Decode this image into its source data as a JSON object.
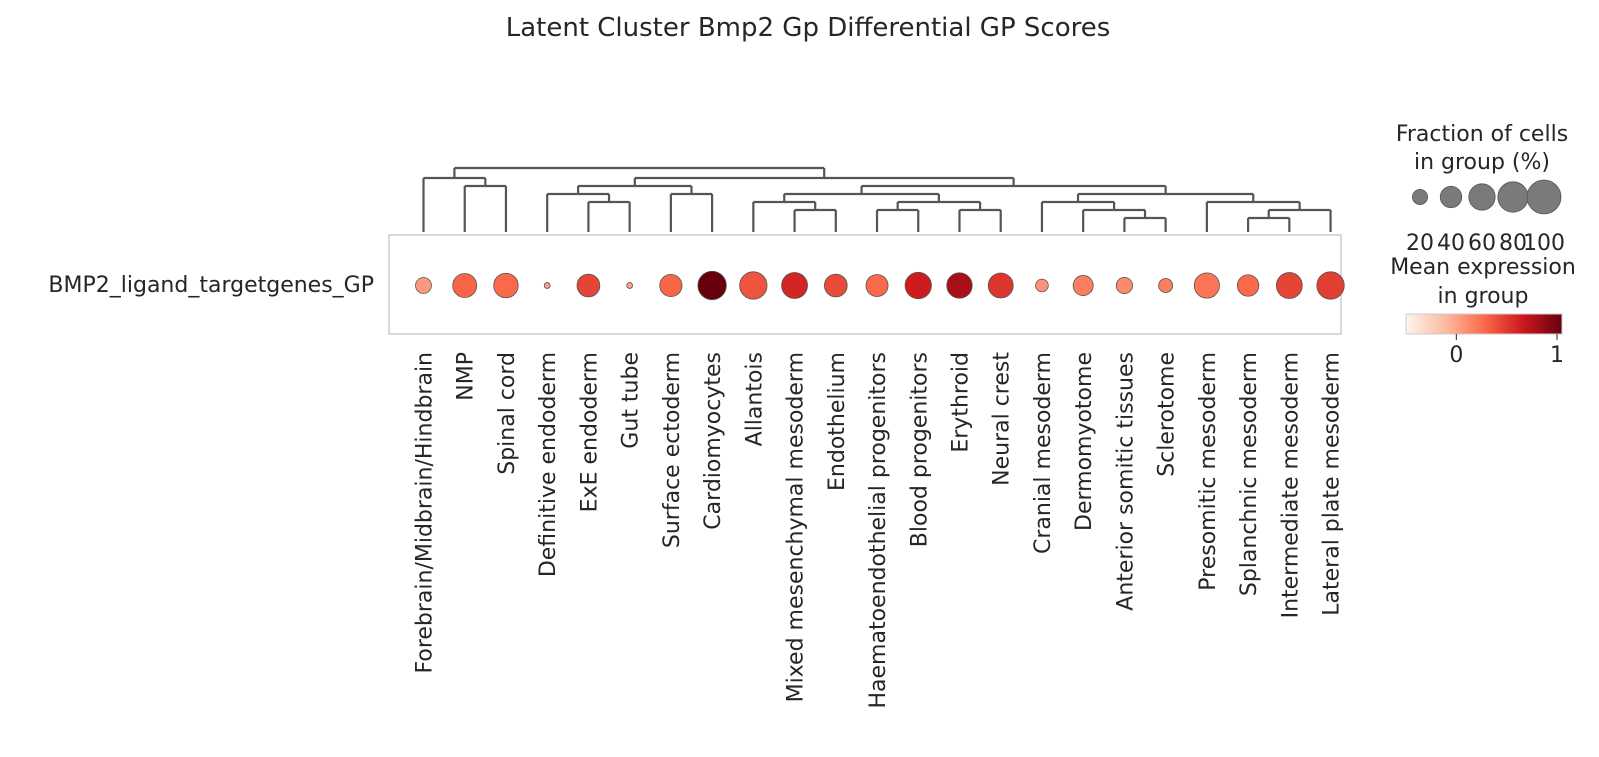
{
  "chart_data": {
    "type": "dotplot",
    "title": "Latent Cluster Bmp2 Gp Differential GP Scores",
    "gene": "BMP2_ligand_targetgenes_GP",
    "categories": [
      "Forebrain/Midbrain/Hindbrain",
      "NMP",
      "Spinal cord",
      "Definitive endoderm",
      "ExE endoderm",
      "Gut tube",
      "Surface ectoderm",
      "Cardiomyocytes",
      "Allantois",
      "Mixed mesenchymal mesoderm",
      "Endothelium",
      "Haematoendothelial progenitors",
      "Blood progenitors",
      "Erythroid",
      "Neural crest",
      "Cranial mesoderm",
      "Dermomyotome",
      "Anterior somitic tissues",
      "Sclerotome",
      "Presomitic mesoderm",
      "Splanchnic mesoderm",
      "Intermediate mesoderm",
      "Lateral plate mesoderm"
    ],
    "fraction_pct": [
      22,
      50,
      52,
      3,
      45,
      3,
      43,
      70,
      65,
      58,
      45,
      42,
      60,
      56,
      54,
      14,
      35,
      23,
      17,
      55,
      40,
      58,
      65
    ],
    "mean_expression": [
      0.05,
      0.3,
      0.28,
      0.0,
      0.45,
      0.0,
      0.3,
      1.25,
      0.38,
      0.6,
      0.42,
      0.28,
      0.65,
      0.8,
      0.52,
      0.08,
      0.18,
      0.12,
      0.18,
      0.22,
      0.28,
      0.45,
      0.48
    ],
    "size_legend": {
      "title_line1": "Fraction of cells",
      "title_line2": "in group (%)",
      "values": [
        20,
        40,
        60,
        80,
        100
      ],
      "labels": [
        "20",
        "40",
        "60",
        "80",
        "100"
      ]
    },
    "color_legend": {
      "title_line1": "Mean expression",
      "title_line2": "in group",
      "range": [
        -0.5,
        1.05
      ],
      "ticks": [
        0,
        1
      ],
      "tick_labels": [
        "0",
        "1"
      ],
      "colormap": "Reds"
    },
    "colors": {
      "dendrogram": "#555555",
      "frame": "#cccccc",
      "dot_edge": "#555555",
      "size_legend_dot": "#7a7a7a"
    }
  }
}
